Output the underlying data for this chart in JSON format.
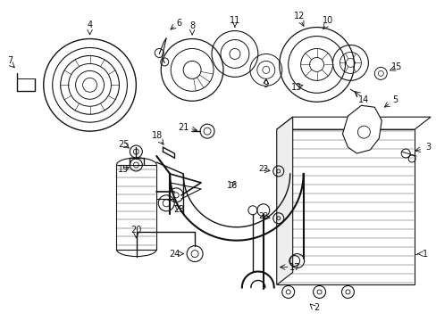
{
  "bg_color": "#ffffff",
  "line_color": "#111111",
  "fig_w": 4.89,
  "fig_h": 3.6,
  "dpi": 100
}
